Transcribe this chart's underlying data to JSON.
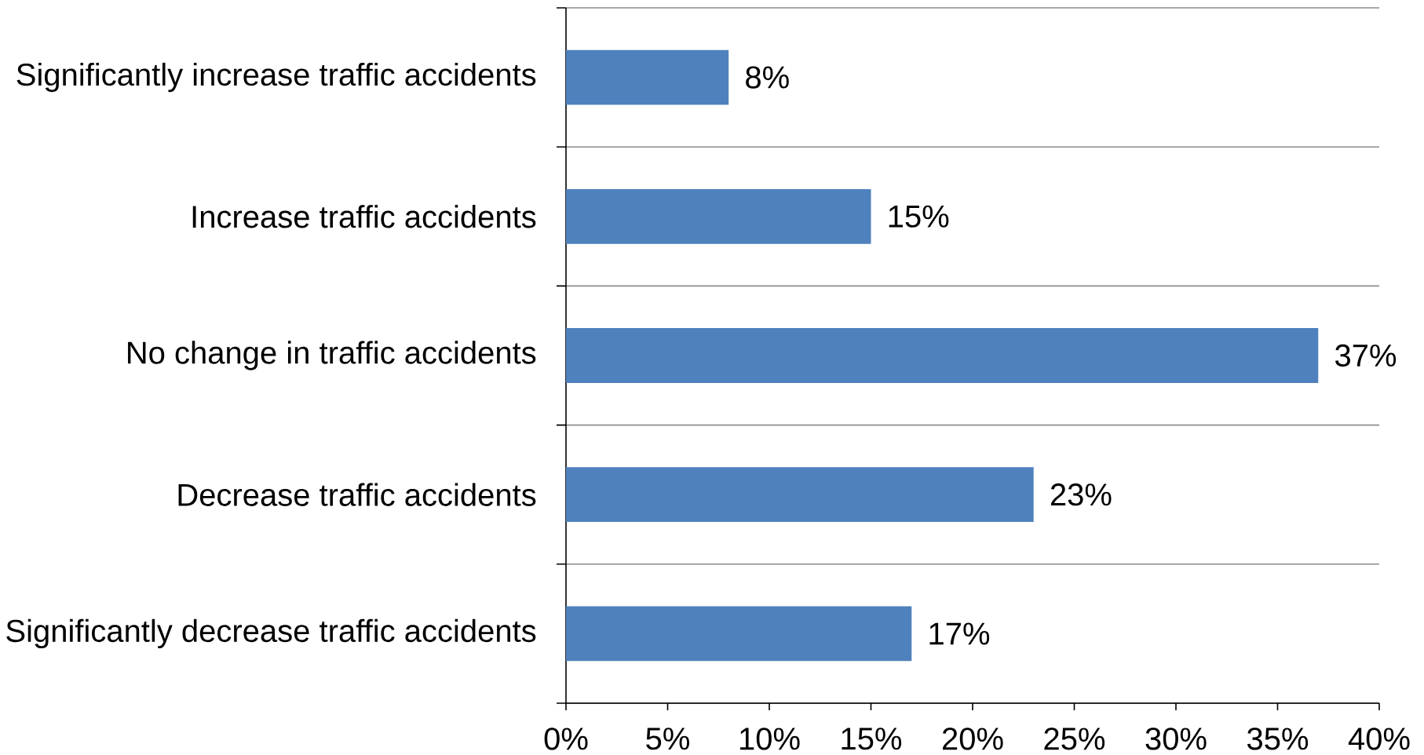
{
  "chart_data": {
    "type": "bar",
    "orientation": "horizontal",
    "categories": [
      "Significantly increase traffic accidents",
      "Increase traffic accidents",
      "No change in traffic accidents",
      "Decrease traffic accidents",
      "Significantly decrease traffic accidents"
    ],
    "values": [
      8,
      15,
      37,
      23,
      17
    ],
    "value_labels": [
      "8%",
      "15%",
      "37%",
      "23%",
      "17%"
    ],
    "color": "#4f81bd",
    "xlim": [
      0,
      40
    ],
    "xticks": [
      {
        "value": 0,
        "label": "0%"
      },
      {
        "value": 5,
        "label": "5%"
      },
      {
        "value": 10,
        "label": "10%"
      },
      {
        "value": 15,
        "label": "15%"
      },
      {
        "value": 20,
        "label": "20%"
      },
      {
        "value": 25,
        "label": "25%"
      },
      {
        "value": 30,
        "label": "30%"
      },
      {
        "value": 35,
        "label": "35%"
      },
      {
        "value": 40,
        "label": "40%"
      }
    ],
    "grid": "y"
  }
}
